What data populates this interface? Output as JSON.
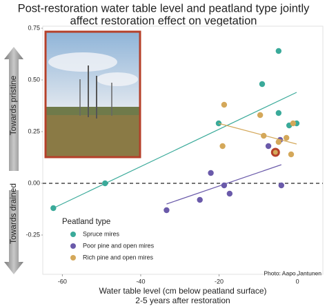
{
  "chart_data": {
    "type": "scatter",
    "title": [
      "Post-restoration water table level and peatland type jointly",
      "affect restoration effect on vegetation"
    ],
    "xlabel": [
      "Water table level (cm below peatland surface)",
      "2-5 years after restoration"
    ],
    "annotations": {
      "up": "Towards pristine",
      "down": "Towards drained"
    },
    "credit": "Photo: Aapo Jantunen",
    "legend_title": "Peatland type",
    "xlim": [
      -65,
      6.5
    ],
    "ylim": [
      -0.44,
      0.76
    ],
    "xticks": [
      -60,
      -40,
      -20,
      0
    ],
    "yticks": [
      0.75,
      {
        "value": 0.5,
        "label": "0.50"
      },
      0.25,
      {
        "value": 0,
        "label": "0.00"
      },
      -0.25
    ],
    "reference_line": {
      "y": 0,
      "dashed": true
    },
    "series": [
      {
        "name": "Spruce mires",
        "color": "#3aaa9a",
        "x": [
          -62.3,
          -49.1,
          -20.1,
          -9.0,
          -4.8,
          -4.8,
          -2.1,
          -0.2
        ],
        "y": [
          -0.12,
          0.0,
          0.29,
          0.48,
          0.64,
          0.34,
          0.28,
          0.29
        ],
        "trend_x": [
          -62.3,
          -0.2
        ],
        "trend_y": [
          -0.12,
          0.44
        ]
      },
      {
        "name": "Poor pine and open mires",
        "color": "#6a5aaa",
        "x": [
          -33.4,
          -24.9,
          -22.1,
          -18.7,
          -17.3,
          -7.4,
          -4.4,
          -4.1
        ],
        "y": [
          -0.13,
          -0.08,
          0.05,
          -0.01,
          -0.05,
          0.18,
          0.21,
          -0.01
        ],
        "trend_x": [
          -33.4,
          -4.1
        ],
        "trend_y": [
          -0.1,
          0.09
        ]
      },
      {
        "name": "Rich pine and open mires",
        "color": "#d4a85a",
        "x": [
          -18.7,
          -9.5,
          -19.1,
          -8.6,
          -4.8,
          -2.8,
          -1.6,
          -1.1
        ],
        "y": [
          0.38,
          0.33,
          0.18,
          0.23,
          0.2,
          0.22,
          0.14,
          0.29
        ],
        "trend_x": [
          -20.1,
          -0.2
        ],
        "trend_y": [
          0.29,
          0.19
        ]
      }
    ],
    "highlighted_point": {
      "x": -5.6,
      "y": 0.15,
      "color": "#d4a85a",
      "ring_color": "#b5402a"
    }
  }
}
